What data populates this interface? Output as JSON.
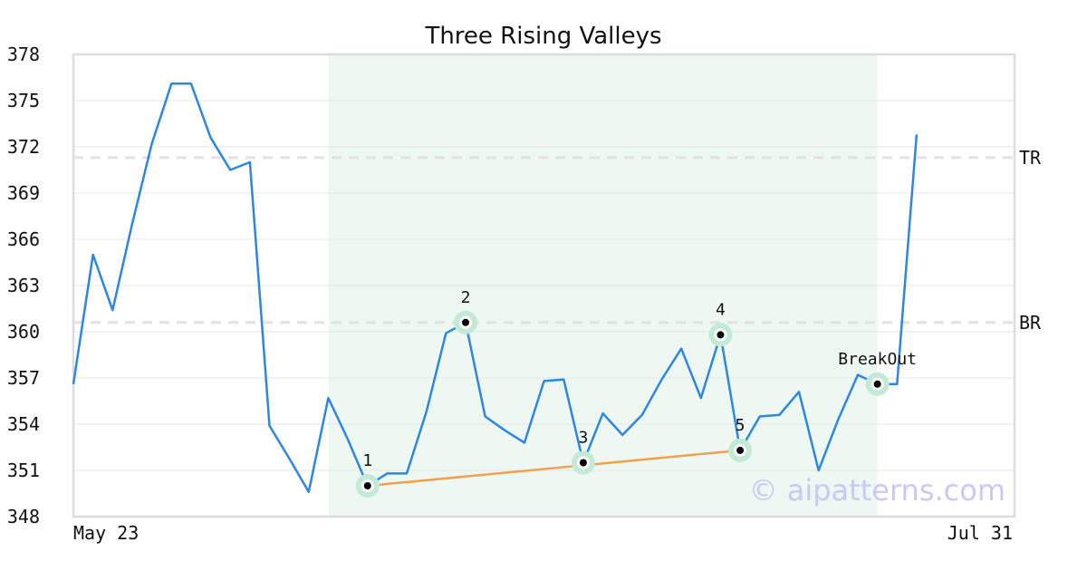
{
  "chart_data": {
    "type": "line",
    "title": "Three Rising Valleys",
    "x_start_label": "May 23",
    "x_end_label": "Jul 31",
    "ylim": [
      348,
      378
    ],
    "yticks": [
      348,
      351,
      354,
      357,
      360,
      363,
      366,
      369,
      372,
      375,
      378
    ],
    "grid": true,
    "series": [
      {
        "color": "#2f86de",
        "values": [
          356.6,
          365.0,
          361.4,
          367.0,
          372.2,
          376.1,
          376.1,
          372.6,
          370.5,
          371.0,
          353.9,
          351.8,
          349.6,
          355.7,
          353.0,
          350.0,
          350.8,
          350.8,
          354.8,
          359.9,
          360.6,
          354.5,
          353.6,
          352.8,
          356.8,
          356.9,
          351.5,
          354.7,
          353.3,
          354.6,
          356.9,
          358.9,
          355.7,
          359.8,
          352.3,
          354.5,
          354.6,
          356.1,
          351.0,
          354.3,
          357.2,
          356.6,
          356.6,
          372.8
        ]
      }
    ],
    "reference_lines": [
      {
        "label": "TR",
        "value": 371.3,
        "color": "#e2e2e2"
      },
      {
        "label": "BR",
        "value": 360.6,
        "color": "#e2e2e2"
      }
    ],
    "highlight_region": {
      "from_index": 13,
      "to_index": 41,
      "color": "#eef8f3"
    },
    "pattern_points": [
      {
        "label": "1",
        "index": 15,
        "value": 350.0
      },
      {
        "label": "2",
        "index": 20,
        "value": 360.6
      },
      {
        "label": "3",
        "index": 26,
        "value": 351.5
      },
      {
        "label": "4",
        "index": 33,
        "value": 359.8
      },
      {
        "label": "5",
        "index": 34,
        "value": 352.3
      },
      {
        "label": "BreakOut",
        "index": 41,
        "value": 356.6
      }
    ],
    "trendline": {
      "from_index": 15,
      "to_index": 34,
      "from_value": 350.0,
      "to_value": 352.3,
      "color": "#f4a04b"
    }
  },
  "watermark": "© aipatterns.com"
}
